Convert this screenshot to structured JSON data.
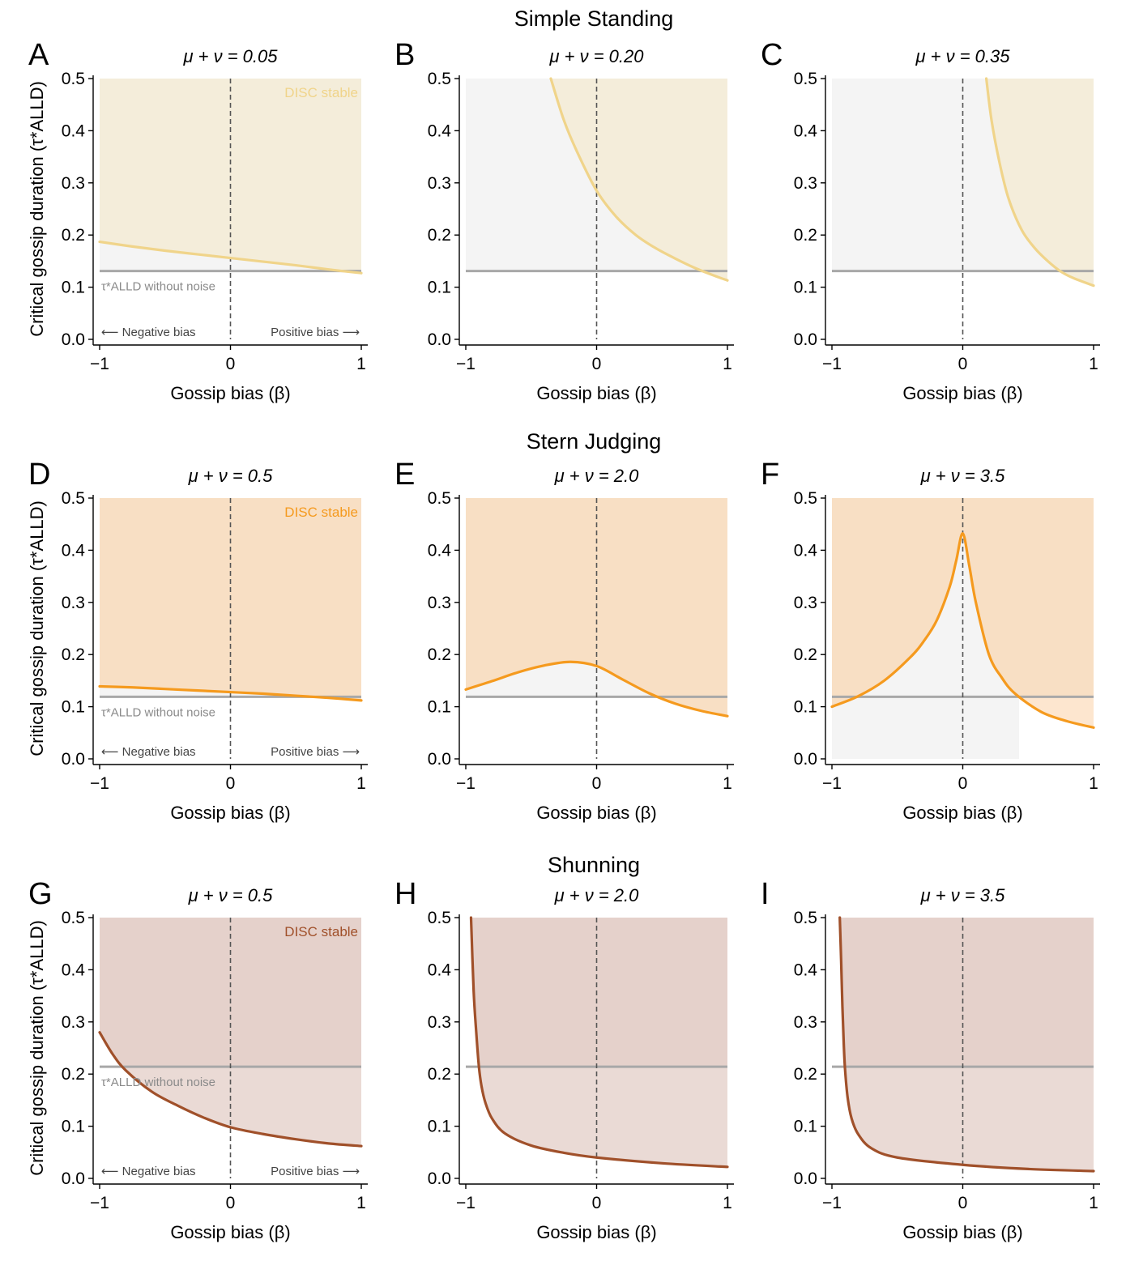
{
  "figure": {
    "xlabel": "Gossip bias (β)",
    "ylabel": "Critical gossip duration (τ*ALLD)",
    "xticks": [
      "−1",
      "0",
      "1"
    ],
    "yticks": [
      "0.0",
      "0.1",
      "0.2",
      "0.3",
      "0.4",
      "0.5"
    ],
    "ylim": [
      0,
      0.5
    ],
    "xlim": [
      -1,
      1
    ],
    "stable_label": "DISC stable",
    "neg_bias_label": "⟵ Negative bias",
    "pos_bias_label": "Positive bias ⟶",
    "ref_label": "τ*ALLD without noise",
    "colors": {
      "unstable_fill": "#f4f4f4",
      "reference_line": "#a8a8a8",
      "zero_line": "#555555"
    }
  },
  "chart_data": [
    {
      "row_title": "Simple Standing",
      "color": "#f0d48a",
      "fill": "#f4edda",
      "reference_tau": 0.131,
      "panels": [
        {
          "letter": "A",
          "subtitle": "μ + ν = 0.05",
          "type": "line",
          "x": [
            -1,
            -0.75,
            -0.5,
            -0.25,
            0,
            0.25,
            0.5,
            0.75,
            1
          ],
          "y": [
            0.187,
            0.178,
            0.17,
            0.163,
            0.156,
            0.149,
            0.142,
            0.134,
            0.127
          ]
        },
        {
          "letter": "B",
          "subtitle": "μ + ν = 0.20",
          "type": "line",
          "x": [
            -0.35,
            -0.25,
            -0.15,
            0,
            0.15,
            0.3,
            0.45,
            0.6,
            0.75,
            0.9,
            1
          ],
          "y": [
            0.5,
            0.42,
            0.36,
            0.285,
            0.235,
            0.2,
            0.175,
            0.155,
            0.137,
            0.122,
            0.113
          ]
        },
        {
          "letter": "C",
          "subtitle": "μ + ν = 0.35",
          "type": "line",
          "x": [
            0.18,
            0.22,
            0.28,
            0.35,
            0.45,
            0.55,
            0.65,
            0.75,
            0.85,
            1
          ],
          "y": [
            0.5,
            0.42,
            0.34,
            0.27,
            0.21,
            0.175,
            0.15,
            0.13,
            0.117,
            0.103
          ]
        }
      ]
    },
    {
      "row_title": "Stern Judging",
      "color": "#f59a1e",
      "fill": "#f8dfc4",
      "reference_tau": 0.119,
      "panels": [
        {
          "letter": "D",
          "subtitle": "μ + ν = 0.5",
          "type": "line",
          "x": [
            -1,
            -0.75,
            -0.5,
            -0.25,
            0,
            0.25,
            0.5,
            0.75,
            1
          ],
          "y": [
            0.139,
            0.137,
            0.134,
            0.131,
            0.128,
            0.125,
            0.121,
            0.117,
            0.112
          ]
        },
        {
          "letter": "E",
          "subtitle": "μ + ν = 2.0",
          "type": "line",
          "x": [
            -1,
            -0.8,
            -0.6,
            -0.4,
            -0.2,
            0,
            0.2,
            0.4,
            0.6,
            0.8,
            1
          ],
          "y": [
            0.133,
            0.149,
            0.166,
            0.179,
            0.186,
            0.178,
            0.152,
            0.126,
            0.106,
            0.092,
            0.082
          ]
        },
        {
          "letter": "F",
          "subtitle": "μ + ν = 3.5",
          "type": "line",
          "x": [
            -1,
            -0.8,
            -0.6,
            -0.4,
            -0.3,
            -0.2,
            -0.1,
            -0.05,
            0,
            0.05,
            0.1,
            0.2,
            0.3,
            0.4,
            0.6,
            0.8,
            1
          ],
          "y": [
            0.1,
            0.12,
            0.15,
            0.195,
            0.225,
            0.265,
            0.33,
            0.38,
            0.432,
            0.37,
            0.3,
            0.2,
            0.155,
            0.125,
            0.09,
            0.072,
            0.06
          ]
        }
      ]
    },
    {
      "row_title": "Shunning",
      "color": "#a0502a",
      "fill": "#e5d1cb",
      "reference_tau": 0.214,
      "panels": [
        {
          "letter": "G",
          "subtitle": "μ + ν = 0.5",
          "type": "line",
          "x": [
            -1,
            -0.9,
            -0.8,
            -0.6,
            -0.4,
            -0.2,
            0,
            0.25,
            0.5,
            0.75,
            1
          ],
          "y": [
            0.28,
            0.238,
            0.207,
            0.166,
            0.139,
            0.116,
            0.098,
            0.085,
            0.075,
            0.067,
            0.062
          ]
        },
        {
          "letter": "H",
          "subtitle": "μ + ν = 2.0",
          "type": "line",
          "x": [
            -0.96,
            -0.94,
            -0.92,
            -0.9,
            -0.88,
            -0.85,
            -0.8,
            -0.7,
            -0.5,
            -0.25,
            0,
            0.5,
            1
          ],
          "y": [
            0.5,
            0.36,
            0.28,
            0.215,
            0.177,
            0.145,
            0.115,
            0.086,
            0.063,
            0.049,
            0.04,
            0.029,
            0.022
          ]
        },
        {
          "letter": "I",
          "subtitle": "μ + ν = 3.5",
          "type": "line",
          "x": [
            -0.94,
            -0.93,
            -0.92,
            -0.91,
            -0.9,
            -0.88,
            -0.85,
            -0.8,
            -0.7,
            -0.5,
            0,
            0.5,
            1
          ],
          "y": [
            0.5,
            0.42,
            0.33,
            0.26,
            0.21,
            0.155,
            0.115,
            0.085,
            0.058,
            0.04,
            0.026,
            0.018,
            0.014
          ]
        }
      ]
    }
  ]
}
